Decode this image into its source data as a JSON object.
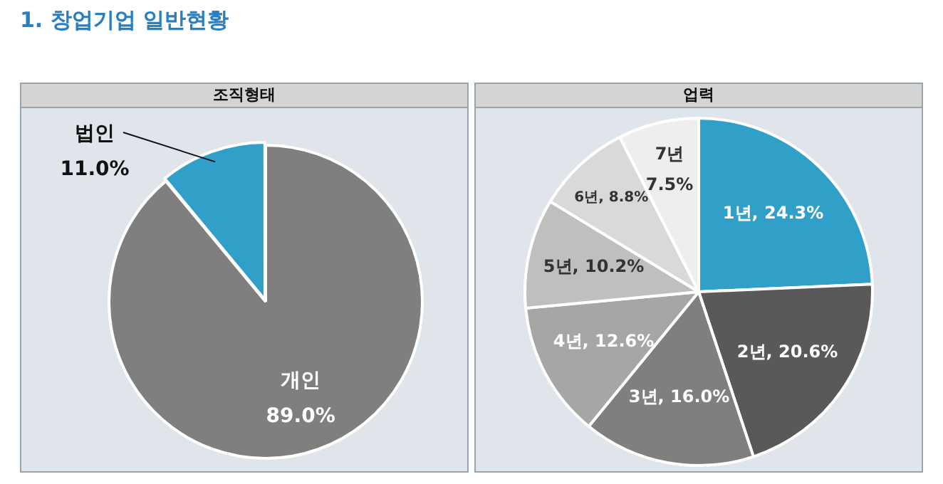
{
  "chart_data": [
    {
      "type": "pie",
      "title": "조직형태",
      "annotations": [
        "1. 창업기업 일반현황"
      ],
      "categories": [
        "개인",
        "법인"
      ],
      "values": [
        89.0,
        11.0
      ],
      "colors": [
        "#7f7f7f",
        "#31a0c8"
      ],
      "value_labels": [
        "89.0%",
        "11.0%"
      ]
    },
    {
      "type": "pie",
      "title": "업력",
      "categories": [
        "1년",
        "2년",
        "3년",
        "4년",
        "5년",
        "6년",
        "7년"
      ],
      "values": [
        24.3,
        20.6,
        16.0,
        12.6,
        10.2,
        8.8,
        7.5
      ],
      "colors": [
        "#31a0c8",
        "#595959",
        "#7f7f7f",
        "#a6a6a6",
        "#bfbfbf",
        "#d9d9d9",
        "#eeeeee"
      ],
      "value_labels": [
        "24.3%",
        "20.6%",
        "16.0%",
        "12.6%",
        "10.2%",
        "8.8%",
        "7.5%"
      ]
    }
  ]
}
